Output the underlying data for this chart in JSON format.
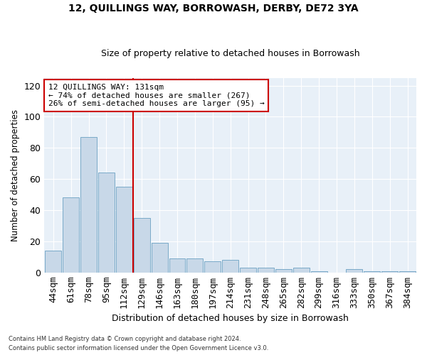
{
  "title": "12, QUILLINGS WAY, BORROWASH, DERBY, DE72 3YA",
  "subtitle": "Size of property relative to detached houses in Borrowash",
  "xlabel": "Distribution of detached houses by size in Borrowash",
  "ylabel": "Number of detached properties",
  "bar_color": "#c8d8e8",
  "bar_edge_color": "#7aaac8",
  "background_color": "#e8f0f8",
  "categories": [
    "44sqm",
    "61sqm",
    "78sqm",
    "95sqm",
    "112sqm",
    "129sqm",
    "146sqm",
    "163sqm",
    "180sqm",
    "197sqm",
    "214sqm",
    "231sqm",
    "248sqm",
    "265sqm",
    "282sqm",
    "299sqm",
    "316sqm",
    "333sqm",
    "350sqm",
    "367sqm",
    "384sqm"
  ],
  "values": [
    14,
    48,
    87,
    64,
    55,
    35,
    19,
    9,
    9,
    7,
    8,
    3,
    3,
    2,
    3,
    1,
    0,
    2,
    1,
    1,
    1
  ],
  "ylim": [
    0,
    125
  ],
  "yticks": [
    0,
    20,
    40,
    60,
    80,
    100,
    120
  ],
  "vline_index": 5,
  "vline_color": "#cc0000",
  "annotation_text": "12 QUILLINGS WAY: 131sqm\n← 74% of detached houses are smaller (267)\n26% of semi-detached houses are larger (95) →",
  "annotation_box_color": "#ffffff",
  "annotation_box_edge": "#cc0000",
  "footer_line1": "Contains HM Land Registry data © Crown copyright and database right 2024.",
  "footer_line2": "Contains public sector information licensed under the Open Government Licence v3.0."
}
